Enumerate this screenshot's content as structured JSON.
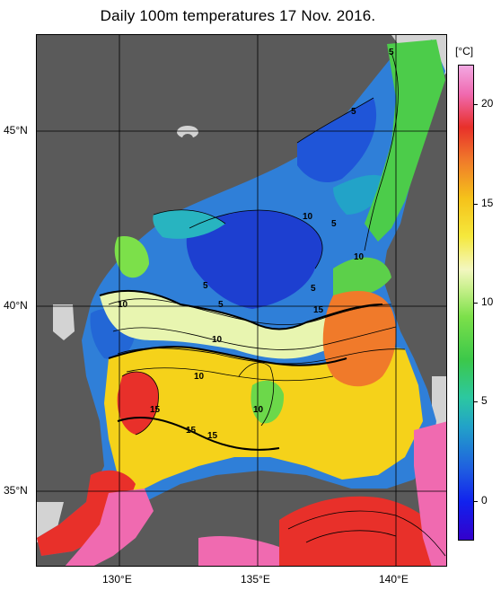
{
  "title": "Daily 100m temperatures 17 Nov. 2016.",
  "colorbar": {
    "unit": "[°C]",
    "ticks": [
      {
        "label": "20",
        "value": 20
      },
      {
        "label": "15",
        "value": 15
      },
      {
        "label": "10",
        "value": 10
      },
      {
        "label": "5",
        "value": 5
      },
      {
        "label": "0",
        "value": 0
      }
    ],
    "range": [
      -2,
      22
    ]
  },
  "axes": {
    "latitudes": [
      {
        "label": "45°N",
        "value": 45
      },
      {
        "label": "40°N",
        "value": 40
      },
      {
        "label": "35°N",
        "value": 35
      }
    ],
    "longitudes": [
      {
        "label": "130°E",
        "value": 130
      },
      {
        "label": "135°E",
        "value": 135
      },
      {
        "label": "140°E",
        "value": 140
      }
    ]
  },
  "contour_labels": [
    "5",
    "5",
    "10",
    "5",
    "10",
    "10",
    "5",
    "5",
    "5",
    "15",
    "10",
    "10",
    "15",
    "15",
    "15",
    "10"
  ],
  "colors": {
    "land": "#5a5a5a",
    "no_data": "#d3d3d3",
    "grid": "#000000"
  }
}
